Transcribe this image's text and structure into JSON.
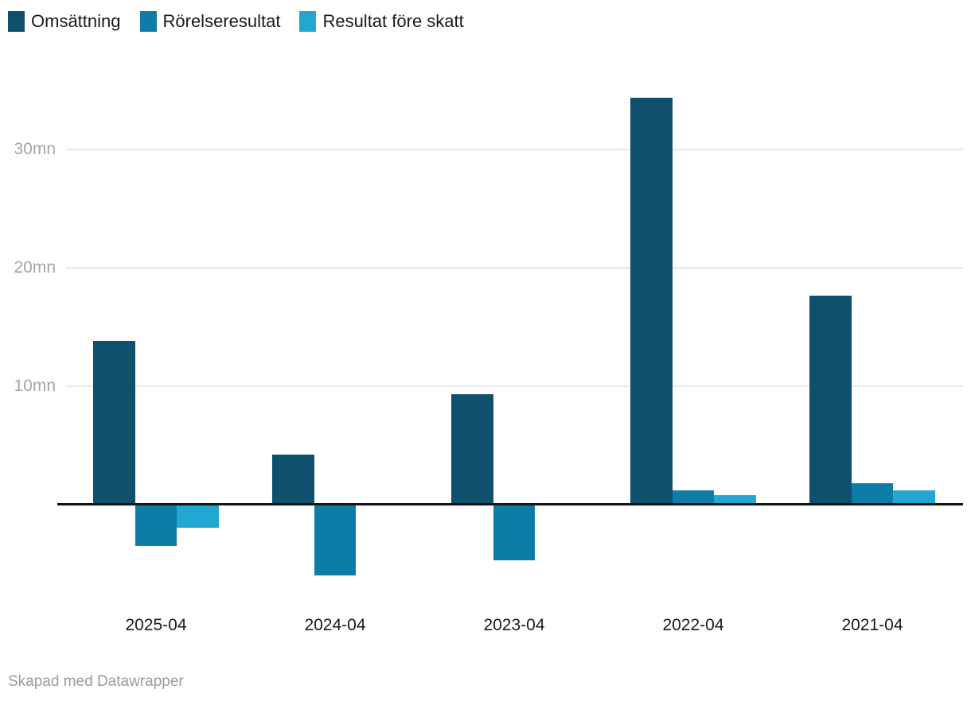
{
  "legend": {
    "items": [
      {
        "label": "Omsättning"
      },
      {
        "label": "Rörelseresultat"
      },
      {
        "label": "Resultat före skatt"
      }
    ]
  },
  "footer": {
    "text": "Skapad med Datawrapper"
  },
  "colors": {
    "omsattning": "#0e506e",
    "rorelseresultat": "#0d7da7",
    "resultat_fore_skatt": "#22a7d2",
    "gridline": "#e7e7e7",
    "axis_line": "#151515",
    "ytick_label": "#a5a5a5",
    "xtick_label": "#1a1a1a",
    "footer_text": "#9b9b9b",
    "legend_text": "#1a1a1a",
    "background": "#ffffff"
  },
  "chart_data": {
    "type": "bar",
    "title": "",
    "categories": [
      "2025-04",
      "2024-04",
      "2023-04",
      "2022-04",
      "2021-04"
    ],
    "series": [
      {
        "name": "Omsättning",
        "color": "#0e506e",
        "values": [
          13.9,
          4.3,
          9.4,
          34.4,
          17.7
        ]
      },
      {
        "name": "Rörelseresultat",
        "color": "#0d7da7",
        "values": [
          -3.4,
          -5.9,
          -4.6,
          1.3,
          1.9
        ]
      },
      {
        "name": "Resultat före skatt",
        "color": "#22a7d2",
        "values": [
          -1.9,
          0,
          0,
          0.9,
          1.3
        ]
      }
    ],
    "unit": "mn",
    "yticks": [
      {
        "value": 30,
        "label": "30mn"
      },
      {
        "value": 20,
        "label": "20mn"
      },
      {
        "value": 10,
        "label": "10mn"
      }
    ],
    "ylim": [
      -8,
      36
    ],
    "grid": "horizontal",
    "legend_position": "top-left",
    "xlabel": "",
    "ylabel": "",
    "attribution": "Skapad med Datawrapper"
  }
}
